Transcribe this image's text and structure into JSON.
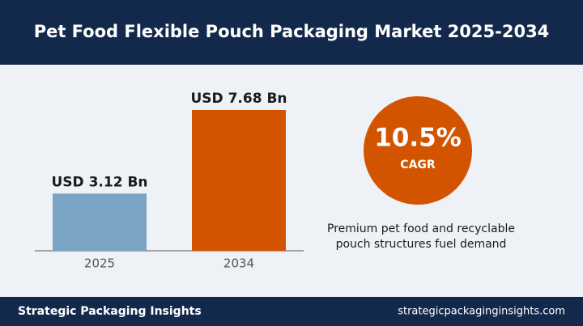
{
  "header": {
    "title": "Pet Food Flexible Pouch Packaging Market 2025-2034"
  },
  "chart_data": {
    "type": "bar",
    "categories": [
      "2025",
      "2034"
    ],
    "values": [
      3.12,
      7.68
    ],
    "value_labels": [
      "USD 3.12 Bn",
      "USD 7.68 Bn"
    ],
    "colors": [
      "#7ba3c4",
      "#d35400"
    ]
  },
  "cagr": {
    "value_label": "10.5%",
    "label": "CAGR"
  },
  "note": {
    "lines": [
      "Premium pet food and recyclable",
      "pouch structures fuel demand"
    ]
  },
  "footer": {
    "left": "Strategic Packaging Insights",
    "right": "strategicpackaginginsights.com"
  }
}
